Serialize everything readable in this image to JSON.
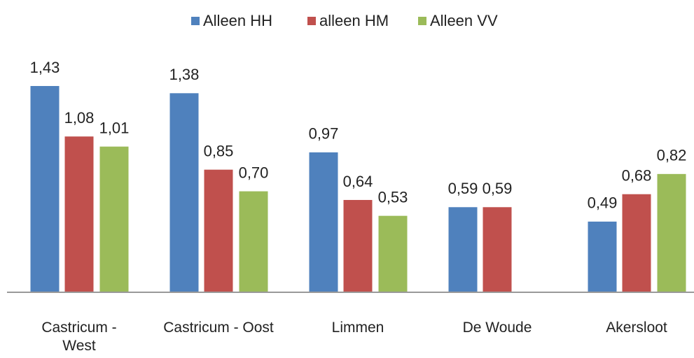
{
  "chart_data": {
    "type": "bar",
    "categories": [
      "Castricum - West",
      "Castricum - Oost",
      "Limmen",
      "De Woude",
      "Akersloot"
    ],
    "series": [
      {
        "name": "Alleen HH",
        "color": "#4f81bd",
        "values": [
          1.43,
          1.38,
          0.97,
          0.59,
          0.49
        ],
        "value_labels": [
          "1,43",
          "1,38",
          "0,97",
          "0,59",
          "0,49"
        ]
      },
      {
        "name": "alleen HM",
        "color": "#c0504d",
        "values": [
          1.08,
          0.85,
          0.64,
          0.59,
          0.68
        ],
        "value_labels": [
          "1,08",
          "0,85",
          "0,64",
          "0,59",
          "0,68"
        ]
      },
      {
        "name": "Alleen VV",
        "color": "#9bbb59",
        "values": [
          1.01,
          0.7,
          0.53,
          null,
          0.82
        ],
        "value_labels": [
          "1,01",
          "0,70",
          "0,53",
          null,
          "0,82"
        ]
      }
    ],
    "legend": "top"
  }
}
